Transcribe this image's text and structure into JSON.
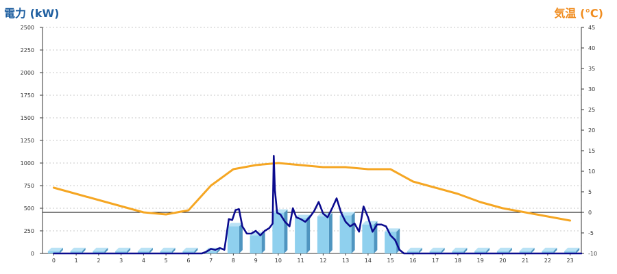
{
  "titles": {
    "left": "電力 (kW)",
    "right": "気温 (℃)"
  },
  "colors": {
    "left_title": "#1f5fa0",
    "right_title": "#f08c1e",
    "power_line": "#0b0b8e",
    "temp_line": "#f5a623",
    "bar_front": "#8fd0ee",
    "bar_side": "#4f95c0",
    "bar_top": "#b9e2f5",
    "grid": "#c8c8c8"
  },
  "chart_data": {
    "type": "bar",
    "xlabel": "",
    "categories": [
      "0",
      "1",
      "2",
      "3",
      "4",
      "5",
      "6",
      "7",
      "8",
      "9",
      "10",
      "11",
      "12",
      "13",
      "14",
      "15",
      "16",
      "17",
      "18",
      "19",
      "20",
      "21",
      "22",
      "23"
    ],
    "y_left": {
      "label": "電力 (kW)",
      "min": 0,
      "max": 2500,
      "ticks": [
        0,
        250,
        500,
        750,
        1000,
        1250,
        1500,
        1750,
        2000,
        2250,
        2500
      ]
    },
    "y_right": {
      "label": "気温 (℃)",
      "min": -10,
      "max": 45,
      "ticks": [
        -10,
        -5,
        0,
        5,
        10,
        15,
        20,
        25,
        30,
        35,
        40,
        45
      ]
    },
    "reference_line": {
      "axis": "right",
      "value": 0
    },
    "grid": true,
    "series": [
      {
        "type": "bar",
        "axis": "left",
        "values": [
          25,
          25,
          25,
          25,
          25,
          25,
          25,
          25,
          300,
          200,
          450,
          390,
          410,
          420,
          320,
          240,
          25,
          25,
          25,
          25,
          25,
          25,
          25,
          25
        ]
      },
      {
        "type": "line",
        "axis": "right",
        "x": [
          0,
          1,
          2,
          3,
          4,
          5,
          6,
          7,
          8,
          9,
          10,
          11,
          12,
          13,
          14,
          15,
          16,
          17,
          18,
          19,
          20,
          21,
          22,
          23
        ],
        "values": [
          6,
          4.5,
          3,
          1.5,
          0,
          -0.5,
          0.5,
          6.5,
          10.5,
          11.5,
          12,
          11.5,
          11,
          11,
          10.5,
          10.5,
          7.5,
          6,
          4.5,
          2.5,
          1,
          0,
          -1,
          -2
        ]
      },
      {
        "type": "line",
        "axis": "left",
        "x": [
          0,
          6.6,
          6.8,
          7,
          7.2,
          7.4,
          7.6,
          7.8,
          7.95,
          8.1,
          8.25,
          8.4,
          8.6,
          8.8,
          9,
          9.2,
          9.4,
          9.6,
          9.75,
          9.8,
          9.85,
          9.95,
          10.1,
          10.3,
          10.5,
          10.65,
          10.8,
          11,
          11.2,
          11.4,
          11.6,
          11.8,
          12,
          12.2,
          12.4,
          12.6,
          12.8,
          13,
          13.2,
          13.4,
          13.6,
          13.8,
          14,
          14.2,
          14.4,
          14.6,
          14.8,
          15,
          15.2,
          15.4,
          15.6,
          15.8,
          16,
          23.5
        ],
        "values": [
          0,
          0,
          20,
          50,
          40,
          60,
          40,
          380,
          370,
          480,
          490,
          300,
          220,
          220,
          250,
          200,
          250,
          280,
          330,
          1080,
          700,
          450,
          430,
          350,
          300,
          500,
          400,
          380,
          350,
          400,
          470,
          570,
          440,
          400,
          500,
          610,
          450,
          350,
          300,
          330,
          240,
          520,
          400,
          240,
          320,
          320,
          300,
          200,
          150,
          40,
          0,
          0,
          0,
          0
        ]
      }
    ]
  }
}
